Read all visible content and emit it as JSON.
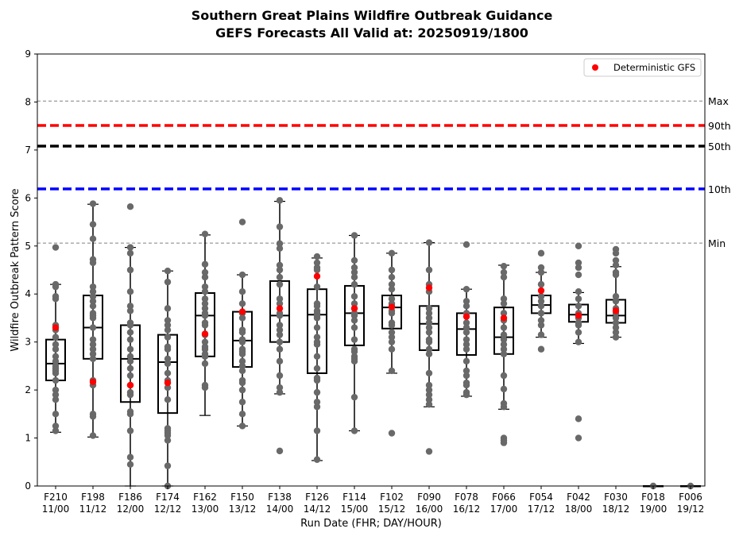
{
  "chart_data": {
    "type": "box",
    "title": "Southern Great Plains Wildfire Outbreak Guidance",
    "subtitle": "GEFS Forecasts All Valid at: 20250919/1800",
    "xlabel": "Run Date (FHR; DAY/HOUR)",
    "ylabel": "Wildfire Outbreak Pattern Score",
    "ylim": [
      0,
      9
    ],
    "yticks": [
      "0",
      "1",
      "2",
      "3",
      "4",
      "5",
      "6",
      "7",
      "8",
      "9"
    ],
    "legend": {
      "position": "top-right",
      "entries": [
        {
          "label": "Deterministic GFS",
          "color": "#ff0000"
        }
      ]
    },
    "reference_lines": [
      {
        "label": "Max",
        "value": 8.02,
        "color": "#808080",
        "style": "thin-dashed"
      },
      {
        "label": "90th",
        "value": 7.51,
        "color": "#ff0000",
        "style": "thick-dashed"
      },
      {
        "label": "50th",
        "value": 7.08,
        "color": "#000000",
        "style": "thick-dashed"
      },
      {
        "label": "10th",
        "value": 6.19,
        "color": "#0000ff",
        "style": "thick-dashed"
      },
      {
        "label": "Min",
        "value": 5.06,
        "color": "#808080",
        "style": "thin-dashed"
      }
    ],
    "colors": {
      "members": "#696969",
      "deterministic": "#ff0000",
      "box": "#000000"
    },
    "categories": [
      {
        "fhr": "F210",
        "date": "11/00",
        "whislo": 1.12,
        "q1": 2.2,
        "med": 2.55,
        "q3": 3.05,
        "whishi": 4.2,
        "det": 3.3,
        "members": [
          4.97,
          4.2,
          4.15,
          3.95,
          3.9,
          3.35,
          3.25,
          3.1,
          2.95,
          2.85,
          2.7,
          2.6,
          2.5,
          2.45,
          2.4,
          2.35,
          2.2,
          2.0,
          1.9,
          1.8,
          1.5,
          1.25,
          1.15
        ]
      },
      {
        "fhr": "F198",
        "date": "11/12",
        "whislo": 1.02,
        "q1": 2.65,
        "med": 3.3,
        "q3": 3.97,
        "whishi": 5.87,
        "det": 2.17,
        "members": [
          5.88,
          5.45,
          5.15,
          4.72,
          4.65,
          4.15,
          4.05,
          3.95,
          3.85,
          3.75,
          3.6,
          3.55,
          3.5,
          3.3,
          3.05,
          2.95,
          2.85,
          2.75,
          2.65,
          2.2,
          2.1,
          1.5,
          1.45,
          1.05
        ]
      },
      {
        "fhr": "F186",
        "date": "12/00",
        "whislo": 0.0,
        "q1": 1.75,
        "med": 2.65,
        "q3": 3.35,
        "whishi": 4.97,
        "det": 2.1,
        "members": [
          5.82,
          4.97,
          4.85,
          4.5,
          4.05,
          3.75,
          3.65,
          3.4,
          3.35,
          3.2,
          3.05,
          2.85,
          2.7,
          2.6,
          2.45,
          2.3,
          2.1,
          1.95,
          1.9,
          1.55,
          1.5,
          1.15,
          0.6,
          0.45
        ]
      },
      {
        "fhr": "F174",
        "date": "12/12",
        "whislo": 0.0,
        "q1": 1.52,
        "med": 2.58,
        "q3": 3.15,
        "whishi": 4.48,
        "det": 2.15,
        "members": [
          4.48,
          4.25,
          3.7,
          3.45,
          3.35,
          3.25,
          3.1,
          2.9,
          2.85,
          2.65,
          2.55,
          2.35,
          2.2,
          2.15,
          2.05,
          1.8,
          1.2,
          1.15,
          1.1,
          1.05,
          0.95,
          0.42,
          0.0
        ]
      },
      {
        "fhr": "F162",
        "date": "13/00",
        "whislo": 1.47,
        "q1": 2.7,
        "med": 3.55,
        "q3": 4.02,
        "whishi": 5.23,
        "det": 3.17,
        "members": [
          5.25,
          4.62,
          4.45,
          4.35,
          4.15,
          4.05,
          3.9,
          3.8,
          3.7,
          3.6,
          3.55,
          3.4,
          3.35,
          3.15,
          3.0,
          2.9,
          2.85,
          2.75,
          2.7,
          2.55,
          2.1,
          2.05
        ]
      },
      {
        "fhr": "F150",
        "date": "13/12",
        "whislo": 1.25,
        "q1": 2.48,
        "med": 3.03,
        "q3": 3.63,
        "whishi": 4.4,
        "det": 3.63,
        "members": [
          5.5,
          4.4,
          4.05,
          3.8,
          3.6,
          3.5,
          3.25,
          3.2,
          3.05,
          3.0,
          2.85,
          2.8,
          2.75,
          2.6,
          2.5,
          2.4,
          2.2,
          2.15,
          2.0,
          1.75,
          1.5,
          1.25
        ]
      },
      {
        "fhr": "F138",
        "date": "14/00",
        "whislo": 1.92,
        "q1": 3.0,
        "med": 3.55,
        "q3": 4.27,
        "whishi": 5.93,
        "det": 3.7,
        "members": [
          5.95,
          5.4,
          5.05,
          4.95,
          4.6,
          4.5,
          4.35,
          4.2,
          3.9,
          3.8,
          3.6,
          3.55,
          3.35,
          3.25,
          3.15,
          3.0,
          2.85,
          2.6,
          2.3,
          2.05,
          1.95,
          0.73
        ]
      },
      {
        "fhr": "F126",
        "date": "14/12",
        "whislo": 0.53,
        "q1": 2.35,
        "med": 3.57,
        "q3": 4.1,
        "whishi": 4.75,
        "det": 4.37,
        "members": [
          4.78,
          4.65,
          4.55,
          4.5,
          4.15,
          3.8,
          3.75,
          3.65,
          3.6,
          3.55,
          3.5,
          3.3,
          3.1,
          3.0,
          2.95,
          2.7,
          2.45,
          2.25,
          2.2,
          1.95,
          1.75,
          1.65,
          1.15,
          0.55
        ]
      },
      {
        "fhr": "F114",
        "date": "15/00",
        "whislo": 1.15,
        "q1": 2.93,
        "med": 3.6,
        "q3": 4.17,
        "whishi": 5.22,
        "det": 3.7,
        "members": [
          5.22,
          4.7,
          4.55,
          4.45,
          4.35,
          4.2,
          3.95,
          3.8,
          3.7,
          3.6,
          3.55,
          3.45,
          3.3,
          3.05,
          2.85,
          2.8,
          2.7,
          2.65,
          2.6,
          1.85,
          1.15
        ]
      },
      {
        "fhr": "F102",
        "date": "15/12",
        "whislo": 2.35,
        "q1": 3.28,
        "med": 3.72,
        "q3": 3.97,
        "whishi": 4.85,
        "det": 3.73,
        "members": [
          4.85,
          4.5,
          4.35,
          4.2,
          4.1,
          3.9,
          3.8,
          3.75,
          3.65,
          3.6,
          3.4,
          3.35,
          3.2,
          3.1,
          3.0,
          2.85,
          2.4,
          1.1
        ]
      },
      {
        "fhr": "F090",
        "date": "16/00",
        "whislo": 1.65,
        "q1": 2.83,
        "med": 3.38,
        "q3": 3.75,
        "whishi": 5.07,
        "det": 4.13,
        "members": [
          5.07,
          4.5,
          4.2,
          4.05,
          3.7,
          3.6,
          3.5,
          3.4,
          3.3,
          3.2,
          3.05,
          3.0,
          2.85,
          2.75,
          2.35,
          2.1,
          2.0,
          1.9,
          1.8,
          1.7,
          0.72
        ]
      },
      {
        "fhr": "F078",
        "date": "16/12",
        "whislo": 1.87,
        "q1": 2.73,
        "med": 3.27,
        "q3": 3.6,
        "whishi": 4.1,
        "det": 3.53,
        "members": [
          5.03,
          4.1,
          3.85,
          3.75,
          3.6,
          3.4,
          3.3,
          3.2,
          3.05,
          2.95,
          2.85,
          2.6,
          2.4,
          2.3,
          2.15,
          2.1,
          1.95,
          1.9
        ]
      },
      {
        "fhr": "F066",
        "date": "17/00",
        "whislo": 1.6,
        "q1": 2.75,
        "med": 3.1,
        "q3": 3.72,
        "whishi": 4.6,
        "det": 3.5,
        "members": [
          4.58,
          4.45,
          4.35,
          3.9,
          3.8,
          3.6,
          3.45,
          3.3,
          3.15,
          3.05,
          2.95,
          2.85,
          2.75,
          2.3,
          2.02,
          1.72,
          1.65,
          1.0,
          0.95,
          0.9
        ]
      },
      {
        "fhr": "F054",
        "date": "17/12",
        "whislo": 3.1,
        "q1": 3.6,
        "med": 3.77,
        "q3": 3.97,
        "whishi": 4.45,
        "det": 4.07,
        "members": [
          4.85,
          4.55,
          4.45,
          4.2,
          3.95,
          3.85,
          3.75,
          3.6,
          3.45,
          3.35,
          3.15,
          2.85
        ]
      },
      {
        "fhr": "F042",
        "date": "18/00",
        "whislo": 2.97,
        "q1": 3.42,
        "med": 3.57,
        "q3": 3.78,
        "whishi": 4.03,
        "det": 3.55,
        "members": [
          5.0,
          4.65,
          4.55,
          4.4,
          4.05,
          3.9,
          3.75,
          3.6,
          3.5,
          3.4,
          3.35,
          3.2,
          3.0,
          1.4,
          1.0
        ]
      },
      {
        "fhr": "F030",
        "date": "18/12",
        "whislo": 3.1,
        "q1": 3.4,
        "med": 3.55,
        "q3": 3.88,
        "whishi": 4.57,
        "det": 3.65,
        "members": [
          4.93,
          4.85,
          4.7,
          4.6,
          4.45,
          4.4,
          3.95,
          3.85,
          3.7,
          3.6,
          3.5,
          3.4,
          3.3,
          3.2,
          3.1
        ]
      },
      {
        "fhr": "F018",
        "date": "19/00",
        "whislo": 0.0,
        "q1": 0.0,
        "med": 0.0,
        "q3": 0.0,
        "whishi": 0.0,
        "det": null,
        "members": [
          0.0
        ]
      },
      {
        "fhr": "F006",
        "date": "19/12",
        "whislo": 0.0,
        "q1": 0.0,
        "med": 0.0,
        "q3": 0.0,
        "whishi": 0.0,
        "det": null,
        "members": [
          0.0
        ]
      }
    ]
  }
}
